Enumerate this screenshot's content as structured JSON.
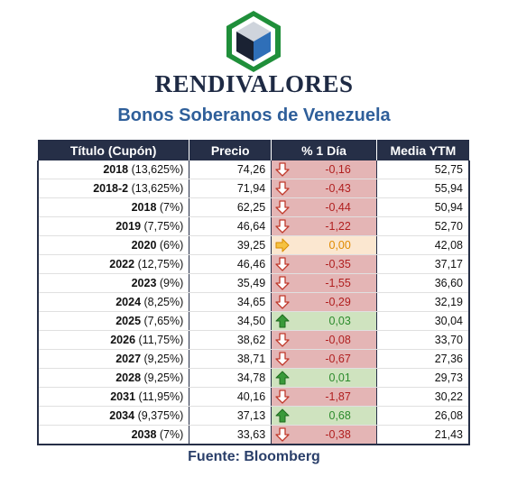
{
  "brand": "RENDIVALORES",
  "subtitle": "Bonos Soberanos de Venezuela",
  "table": {
    "headers": [
      "Título (Cupón)",
      "Precio",
      "% 1 Día",
      "Media YTM"
    ],
    "rows": [
      {
        "year": "2018",
        "coupon": " (13,625%)",
        "price": "74,26",
        "change": "-0,16",
        "dir": "down",
        "ytm": "52,75"
      },
      {
        "year": "2018-2",
        "coupon": " (13,625%)",
        "price": "71,94",
        "change": "-0,43",
        "dir": "down",
        "ytm": "55,94"
      },
      {
        "year": "2018",
        "coupon": " (7%)",
        "price": "62,25",
        "change": "-0,44",
        "dir": "down",
        "ytm": "50,94"
      },
      {
        "year": "2019",
        "coupon": " (7,75%)",
        "price": "46,64",
        "change": "-1,22",
        "dir": "down",
        "ytm": "52,70"
      },
      {
        "year": "2020",
        "coupon": " (6%)",
        "price": "39,25",
        "change": "0,00",
        "dir": "flat",
        "ytm": "42,08"
      },
      {
        "year": "2022",
        "coupon": " (12,75%)",
        "price": "46,46",
        "change": "-0,35",
        "dir": "down",
        "ytm": "37,17"
      },
      {
        "year": "2023",
        "coupon": " (9%)",
        "price": "35,49",
        "change": "-1,55",
        "dir": "down",
        "ytm": "36,60"
      },
      {
        "year": "2024",
        "coupon": " (8,25%)",
        "price": "34,65",
        "change": "-0,29",
        "dir": "down",
        "ytm": "32,19"
      },
      {
        "year": "2025",
        "coupon": " (7,65%)",
        "price": "34,50",
        "change": "0,03",
        "dir": "up",
        "ytm": "30,04"
      },
      {
        "year": "2026",
        "coupon": " (11,75%)",
        "price": "38,62",
        "change": "-0,08",
        "dir": "down",
        "ytm": "33,70"
      },
      {
        "year": "2027",
        "coupon": " (9,25%)",
        "price": "38,71",
        "change": "-0,67",
        "dir": "down",
        "ytm": "27,36"
      },
      {
        "year": "2028",
        "coupon": " (9,25%)",
        "price": "34,78",
        "change": "0,01",
        "dir": "up",
        "ytm": "29,73"
      },
      {
        "year": "2031",
        "coupon": " (11,95%)",
        "price": "40,16",
        "change": "-1,87",
        "dir": "down",
        "ytm": "30,22"
      },
      {
        "year": "2034",
        "coupon": " (9,375%)",
        "price": "37,13",
        "change": "0,68",
        "dir": "up",
        "ytm": "26,08"
      },
      {
        "year": "2038",
        "coupon": " (7%)",
        "price": "33,63",
        "change": "-0,38",
        "dir": "down",
        "ytm": "21,43"
      }
    ]
  },
  "footer": "Fuente: Bloomberg",
  "colors": {
    "header_bg": "#262f47",
    "down_bg": "#e4b5b5",
    "down_text": "#b01f1f",
    "up_bg": "#cfe3bf",
    "up_text": "#2b8a2b",
    "flat_bg": "#fbe7d0",
    "flat_text": "#e08a00",
    "title_blue": "#2f5f9a"
  },
  "icons": {
    "down": "arrow-down-icon",
    "up": "arrow-up-icon",
    "flat": "arrow-right-icon"
  }
}
